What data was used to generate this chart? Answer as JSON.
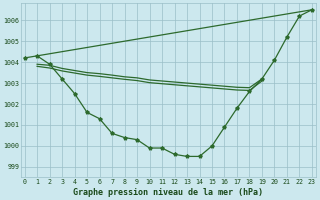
{
  "hours": [
    0,
    1,
    2,
    3,
    4,
    5,
    6,
    7,
    8,
    9,
    10,
    11,
    12,
    13,
    14,
    15,
    16,
    17,
    18,
    19,
    20,
    21,
    22,
    23
  ],
  "y_curve": [
    1004.2,
    1004.3,
    1003.9,
    1003.2,
    1002.5,
    1001.6,
    1001.3,
    1000.6,
    1000.4,
    1000.3,
    999.9,
    999.9,
    999.6,
    999.5,
    999.5,
    1000.0,
    1000.9,
    1001.8,
    1002.6,
    1003.2,
    1004.1,
    1005.2,
    1006.2,
    1006.5
  ],
  "y_diag": [
    null,
    1004.3,
    null,
    null,
    null,
    null,
    null,
    null,
    null,
    null,
    null,
    null,
    null,
    null,
    null,
    null,
    null,
    null,
    null,
    null,
    null,
    null,
    null,
    1006.5
  ],
  "y_flat1": [
    null,
    1003.9,
    1003.85,
    1003.7,
    1003.6,
    1003.5,
    1003.45,
    1003.38,
    1003.3,
    1003.25,
    1003.15,
    1003.1,
    1003.05,
    1003.0,
    1002.95,
    1002.9,
    1002.85,
    1002.8,
    1002.78,
    1003.2,
    null,
    null,
    null,
    null
  ],
  "y_flat2": [
    null,
    1003.85,
    1003.75,
    1003.6,
    1003.5,
    1003.4,
    1003.35,
    1003.28,
    1003.2,
    1003.15,
    1003.05,
    1003.0,
    1002.95,
    1002.9,
    1002.85,
    1002.8,
    1002.75,
    1002.7,
    1002.68,
    1003.15,
    null,
    null,
    null,
    null
  ],
  "ylim": [
    998.5,
    1006.8
  ],
  "yticks": [
    999,
    1000,
    1001,
    1002,
    1003,
    1004,
    1005,
    1006
  ],
  "line_color": "#2d6a2d",
  "bg_color": "#cce8ee",
  "grid_color": "#9bbfc8",
  "xlabel": "Graphe pression niveau de la mer (hPa)",
  "label_color": "#1a4a1a"
}
